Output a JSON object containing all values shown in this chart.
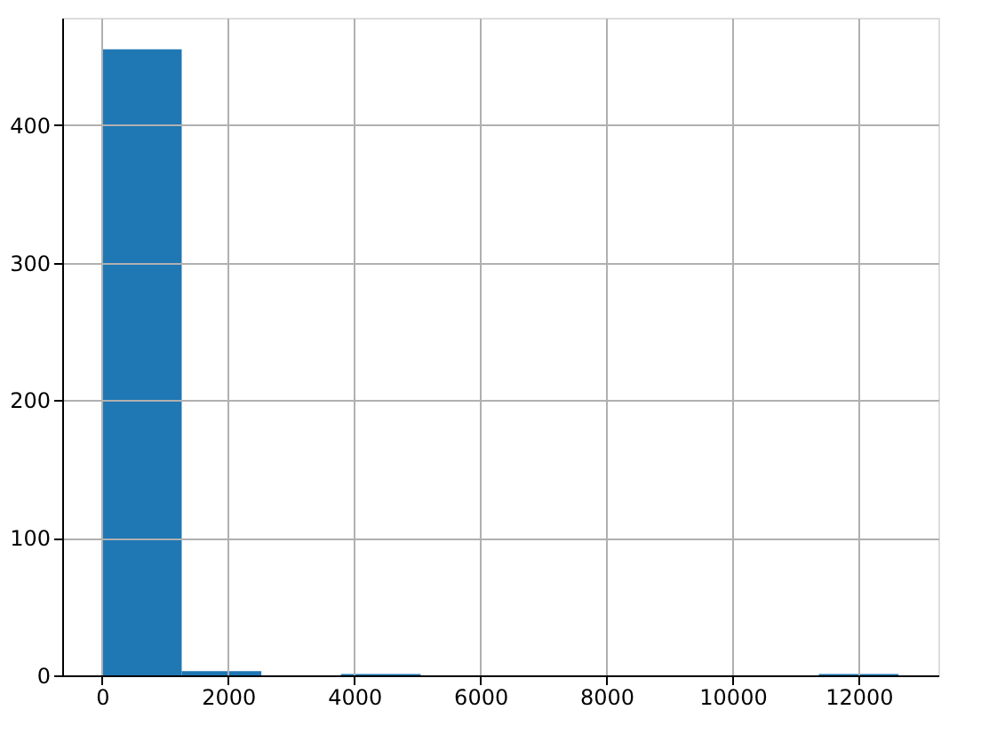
{
  "chart_data": {
    "type": "histogram",
    "bins": [
      0,
      1263,
      2526,
      3789,
      5052,
      6315,
      7578,
      8841,
      10104,
      11367,
      12630
    ],
    "values": [
      455,
      3,
      0,
      1,
      0,
      0,
      0,
      0,
      0,
      1
    ],
    "color": "#1f77b4",
    "xlim": [
      -632,
      13262
    ],
    "ylim": [
      0,
      478
    ],
    "xticks": [
      0,
      2000,
      4000,
      6000,
      8000,
      10000,
      12000
    ],
    "yticks": [
      0,
      100,
      200,
      300,
      400
    ],
    "grid": true
  }
}
